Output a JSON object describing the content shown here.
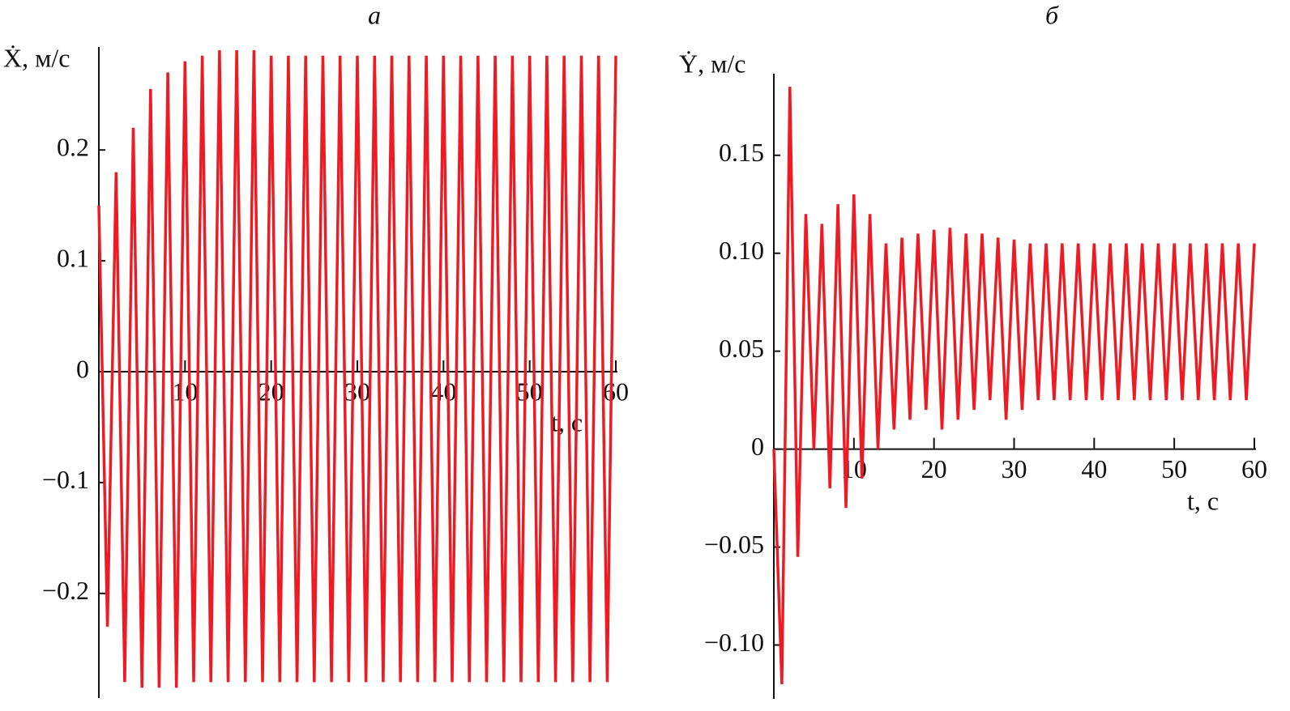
{
  "chart_data": [
    {
      "type": "line",
      "title": "а",
      "y_label": "Ẋ, м/с",
      "x_label": "t, с",
      "color": "#ed1c24",
      "xlim": [
        0,
        60
      ],
      "ylim": [
        -0.29,
        0.29
      ],
      "grid": false,
      "xticks": [
        10,
        20,
        30,
        40,
        50,
        60
      ],
      "yticks": [
        {
          "value": -0.2,
          "label": "−0.2"
        },
        {
          "value": -0.1,
          "label": "−0.1"
        },
        0,
        0.1,
        0.2
      ],
      "x": [
        0,
        1,
        2,
        3,
        4,
        5,
        6,
        7,
        8,
        9,
        10,
        11,
        12,
        13,
        14,
        15,
        16,
        17,
        18,
        19,
        20,
        21,
        22,
        23,
        24,
        25,
        26,
        27,
        28,
        29,
        30,
        31,
        32,
        33,
        34,
        35,
        36,
        37,
        38,
        39,
        40,
        41,
        42,
        43,
        44,
        45,
        46,
        47,
        48,
        49,
        50,
        51,
        52,
        53,
        54,
        55,
        56,
        57,
        58,
        59,
        60
      ],
      "values": [
        0.15,
        -0.23,
        0.18,
        -0.28,
        0.22,
        -0.285,
        0.255,
        -0.285,
        0.27,
        -0.285,
        0.28,
        -0.28,
        0.285,
        -0.28,
        0.29,
        -0.28,
        0.29,
        -0.28,
        0.29,
        -0.28,
        0.285,
        -0.28,
        0.285,
        -0.28,
        0.285,
        -0.28,
        0.285,
        -0.28,
        0.285,
        -0.28,
        0.285,
        -0.28,
        0.285,
        -0.28,
        0.285,
        -0.28,
        0.285,
        -0.28,
        0.285,
        -0.28,
        0.285,
        -0.28,
        0.285,
        -0.28,
        0.285,
        -0.28,
        0.285,
        -0.28,
        0.285,
        -0.28,
        0.285,
        -0.28,
        0.285,
        -0.28,
        0.285,
        -0.28,
        0.285,
        -0.28,
        0.285,
        -0.28,
        0.285
      ]
    },
    {
      "type": "line",
      "title": "б",
      "y_label": "Ẏ, м/с",
      "x_label": "t, с",
      "color": "#ed1c24",
      "xlim": [
        0,
        60
      ],
      "ylim": [
        -0.125,
        0.19
      ],
      "grid": false,
      "xticks": [
        10,
        20,
        30,
        40,
        50,
        60
      ],
      "yticks": [
        {
          "value": -0.1,
          "label": "−0.10"
        },
        {
          "value": -0.05,
          "label": "−0.05"
        },
        0,
        {
          "value": 0.05,
          "label": "0.05"
        },
        {
          "value": 0.1,
          "label": "0.10"
        },
        0.15
      ],
      "x": [
        0,
        1,
        2,
        3,
        4,
        5,
        6,
        7,
        8,
        9,
        10,
        11,
        12,
        13,
        14,
        15,
        16,
        17,
        18,
        19,
        20,
        21,
        22,
        23,
        24,
        25,
        26,
        27,
        28,
        29,
        30,
        31,
        32,
        33,
        34,
        35,
        36,
        37,
        38,
        39,
        40,
        41,
        42,
        43,
        44,
        45,
        46,
        47,
        48,
        49,
        50,
        51,
        52,
        53,
        54,
        55,
        56,
        57,
        58,
        59,
        60
      ],
      "values": [
        0,
        -0.12,
        0.185,
        -0.055,
        0.12,
        0,
        0.115,
        -0.02,
        0.125,
        -0.03,
        0.13,
        -0.015,
        0.12,
        0,
        0.105,
        0.01,
        0.108,
        0.015,
        0.11,
        0.02,
        0.112,
        0.01,
        0.113,
        0.015,
        0.11,
        0.02,
        0.11,
        0.025,
        0.108,
        0.015,
        0.107,
        0.02,
        0.105,
        0.025,
        0.105,
        0.025,
        0.105,
        0.025,
        0.105,
        0.025,
        0.105,
        0.025,
        0.105,
        0.025,
        0.105,
        0.025,
        0.105,
        0.025,
        0.105,
        0.025,
        0.105,
        0.025,
        0.105,
        0.025,
        0.105,
        0.025,
        0.105,
        0.025,
        0.105,
        0.025,
        0.105
      ]
    }
  ]
}
